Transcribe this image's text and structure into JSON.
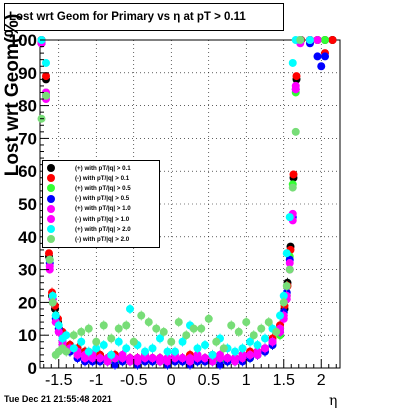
{
  "title": "Lost wrt Geom for Primary vs  η at pT > 0.11",
  "timestamp": "Tue Dec 21 21:55:48 2021",
  "chart_data": {
    "type": "scatter",
    "title": "Lost wrt Geom for Primary vs  η at pT > 0.11",
    "xlabel": "η",
    "ylabel": "Lost wrt Geom(%)",
    "xlim": [
      -1.75,
      2.25
    ],
    "ylim": [
      0,
      100
    ],
    "xticks": [
      -1.5,
      -1,
      -0.5,
      0,
      0.5,
      1,
      1.5,
      2
    ],
    "xtick_labels": [
      "-1.5",
      "-1",
      "-0.5",
      "0",
      "0.5",
      "1",
      "1.5",
      "2"
    ],
    "yticks": [
      0,
      10,
      20,
      30,
      40,
      50,
      60,
      70,
      80,
      90,
      100
    ],
    "ytick_labels": [
      "0",
      "10",
      "20",
      "30",
      "40",
      "50",
      "60",
      "70",
      "80",
      "90",
      "100"
    ],
    "grid": true,
    "legend_position": "left-middle",
    "series": [
      {
        "name": "(+) with pT/|q| > 0.1",
        "color": "#000000",
        "x": [
          -1.73,
          -1.67,
          -1.63,
          -1.59,
          -1.55,
          -1.51,
          -1.45,
          -1.35,
          -1.25,
          -1.15,
          -1.05,
          -0.95,
          -0.85,
          -0.75,
          -0.65,
          -0.55,
          -0.45,
          -0.35,
          -0.25,
          -0.15,
          -0.05,
          0.05,
          0.15,
          0.25,
          0.35,
          0.45,
          0.55,
          0.65,
          0.75,
          0.85,
          0.95,
          1.05,
          1.15,
          1.25,
          1.35,
          1.45,
          1.51,
          1.55,
          1.59,
          1.63,
          1.67,
          1.73,
          1.85,
          1.95,
          2.05,
          2.15
        ],
        "y": [
          100,
          88,
          34,
          22,
          18,
          14,
          10,
          7,
          6,
          5,
          4,
          4,
          3,
          3,
          3,
          3,
          3,
          3,
          3,
          3,
          3,
          3,
          3,
          3,
          3,
          3,
          3,
          3,
          3,
          3,
          4,
          4,
          5,
          6,
          8,
          12,
          18,
          26,
          37,
          58,
          88,
          100,
          100,
          100,
          100,
          100
        ]
      },
      {
        "name": "(-) with pT/|q| > 0.1",
        "color": "#ff0000",
        "x": [
          -1.73,
          -1.67,
          -1.63,
          -1.59,
          -1.55,
          -1.51,
          -1.45,
          -1.35,
          -1.25,
          -1.15,
          -1.05,
          -0.95,
          -0.85,
          -0.75,
          -0.65,
          -0.55,
          -0.45,
          -0.35,
          -0.25,
          -0.15,
          -0.05,
          0.05,
          0.15,
          0.25,
          0.35,
          0.45,
          0.55,
          0.65,
          0.75,
          0.85,
          0.95,
          1.05,
          1.15,
          1.25,
          1.35,
          1.45,
          1.51,
          1.55,
          1.59,
          1.63,
          1.67,
          1.73,
          1.85,
          1.95,
          2.05,
          2.15
        ],
        "y": [
          99,
          89,
          35,
          23,
          19,
          15,
          11,
          7,
          6,
          5,
          4,
          4,
          3,
          4,
          3,
          3,
          3,
          4,
          3,
          3,
          3,
          3,
          3,
          4,
          3,
          3,
          4,
          3,
          3,
          3,
          4,
          5,
          5,
          6,
          9,
          13,
          19,
          25,
          36,
          59,
          89,
          100,
          100,
          100,
          96,
          100
        ]
      },
      {
        "name": "(+) with pT/|q| > 0.5",
        "color": "#33ff33",
        "x": [
          -1.73,
          -1.67,
          -1.62,
          -1.58,
          -1.54,
          -1.5,
          -1.45,
          -1.35,
          -1.25,
          -1.15,
          -1.05,
          -0.95,
          -0.85,
          -0.75,
          -0.65,
          -0.55,
          -0.45,
          -0.35,
          -0.25,
          -0.15,
          -0.05,
          0.05,
          0.15,
          0.25,
          0.35,
          0.45,
          0.55,
          0.65,
          0.75,
          0.85,
          0.95,
          1.05,
          1.15,
          1.25,
          1.35,
          1.45,
          1.5,
          1.54,
          1.58,
          1.62,
          1.66,
          1.72,
          1.85,
          1.95,
          2.05
        ],
        "y": [
          100,
          84,
          33,
          20,
          16,
          12,
          8,
          5,
          4,
          3,
          3,
          3,
          2,
          2,
          2,
          2,
          2,
          2,
          2,
          2,
          2,
          2,
          2,
          2,
          2,
          2,
          2,
          2,
          2,
          2,
          3,
          3,
          4,
          5,
          7,
          10,
          16,
          22,
          34,
          56,
          84,
          100,
          100,
          100,
          100
        ]
      },
      {
        "name": "(-) with pT/|q| > 0.5",
        "color": "#0000ff",
        "x": [
          -1.73,
          -1.67,
          -1.62,
          -1.58,
          -1.54,
          -1.5,
          -1.45,
          -1.35,
          -1.25,
          -1.15,
          -1.05,
          -0.95,
          -0.85,
          -0.75,
          -0.65,
          -0.55,
          -0.45,
          -0.35,
          -0.25,
          -0.15,
          -0.05,
          0.05,
          0.15,
          0.25,
          0.35,
          0.45,
          0.55,
          0.65,
          0.75,
          0.85,
          0.95,
          1.05,
          1.15,
          1.25,
          1.35,
          1.45,
          1.5,
          1.54,
          1.58,
          1.62,
          1.66,
          1.72,
          1.85,
          1.95,
          2.0,
          2.05
        ],
        "y": [
          99,
          83,
          32,
          21,
          15,
          12,
          8,
          5,
          3,
          2,
          2,
          2,
          2,
          1,
          2,
          2,
          1,
          2,
          2,
          2,
          1,
          2,
          2,
          1,
          2,
          2,
          2,
          1,
          2,
          2,
          2,
          3,
          4,
          5,
          7,
          11,
          17,
          23,
          33,
          46,
          85,
          100,
          99,
          95,
          92,
          95
        ]
      },
      {
        "name": "(+) with pT/|q| > 1.0",
        "color": "#ff00ff",
        "x": [
          -1.73,
          -1.67,
          -1.62,
          -1.58,
          -1.54,
          -1.5,
          -1.45,
          -1.35,
          -1.25,
          -1.15,
          -1.05,
          -0.95,
          -0.85,
          -0.75,
          -0.65,
          -0.55,
          -0.45,
          -0.35,
          -0.25,
          -0.15,
          -0.05,
          0.05,
          0.15,
          0.25,
          0.35,
          0.45,
          0.55,
          0.65,
          0.75,
          0.85,
          0.95,
          1.05,
          1.15,
          1.25,
          1.35,
          1.45,
          1.5,
          1.54,
          1.58,
          1.62,
          1.66,
          1.72,
          1.85,
          1.95
        ],
        "y": [
          100,
          82,
          30,
          20,
          14,
          11,
          8,
          6,
          4,
          3,
          3,
          3,
          2,
          3,
          3,
          2,
          2,
          3,
          3,
          2,
          2,
          3,
          3,
          2,
          3,
          3,
          2,
          3,
          3,
          2,
          3,
          4,
          4,
          6,
          8,
          11,
          15,
          21,
          32,
          45,
          86,
          100,
          100,
          100
        ]
      },
      {
        "name": "(-) with pT/|q| > 1.0",
        "color": "#ff00ff",
        "x": [
          -1.73,
          -1.67,
          -1.62,
          -1.58,
          -1.54,
          -1.5,
          -1.45,
          -1.35,
          -1.25,
          -1.15,
          -1.05,
          -0.95,
          -0.85,
          -0.75,
          -0.65,
          -0.55,
          -0.45,
          -0.35,
          -0.25,
          -0.15,
          -0.05,
          0.05,
          0.15,
          0.25,
          0.35,
          0.45,
          0.55,
          0.65,
          0.75,
          0.85,
          0.95,
          1.05,
          1.15,
          1.25,
          1.35,
          1.45,
          1.5,
          1.54,
          1.58,
          1.62,
          1.66,
          1.72,
          1.85
        ],
        "y": [
          99,
          84,
          31,
          21,
          14,
          11,
          7,
          6,
          5,
          4,
          4,
          3,
          3,
          3,
          4,
          3,
          3,
          4,
          3,
          3,
          3,
          4,
          3,
          3,
          4,
          3,
          3,
          4,
          3,
          3,
          4,
          4,
          5,
          6,
          8,
          12,
          16,
          22,
          30,
          47,
          85,
          99,
          100
        ]
      },
      {
        "name": "(+) with pT/|q| > 2.0",
        "color": "#00ffff",
        "x": [
          -1.73,
          -1.67,
          -1.62,
          -1.58,
          -1.54,
          -1.5,
          -1.45,
          -1.4,
          -1.3,
          -1.2,
          -1.1,
          -1.0,
          -0.9,
          -0.8,
          -0.7,
          -0.6,
          -0.55,
          -0.45,
          -0.35,
          -0.25,
          -0.15,
          -0.05,
          0.05,
          0.15,
          0.25,
          0.35,
          0.45,
          0.55,
          0.65,
          0.75,
          0.85,
          0.95,
          1.05,
          1.15,
          1.25,
          1.35,
          1.45,
          1.5,
          1.54,
          1.58,
          1.62,
          1.66,
          1.72,
          1.85
        ],
        "y": [
          100,
          93,
          33,
          22,
          16,
          13,
          9,
          10,
          6,
          8,
          5,
          6,
          7,
          4,
          8,
          6,
          18,
          7,
          5,
          6,
          9,
          5,
          5,
          8,
          13,
          6,
          7,
          4,
          9,
          6,
          5,
          6,
          8,
          7,
          9,
          12,
          16,
          22,
          35,
          46,
          93,
          100,
          100,
          100
        ]
      },
      {
        "name": "(-) with pT/|q| > 2.0",
        "color": "#77dd77",
        "x": [
          -1.73,
          -1.67,
          -1.62,
          -1.58,
          -1.54,
          -1.5,
          -1.45,
          -1.4,
          -1.3,
          -1.2,
          -1.1,
          -1.0,
          -0.9,
          -0.8,
          -0.7,
          -0.6,
          -0.5,
          -0.4,
          -0.3,
          -0.2,
          -0.1,
          0.0,
          0.1,
          0.2,
          0.3,
          0.4,
          0.5,
          0.6,
          0.7,
          0.8,
          0.9,
          1.0,
          1.1,
          1.2,
          1.3,
          1.4,
          1.5,
          1.54,
          1.58,
          1.62,
          1.66,
          1.72
        ],
        "y": [
          76,
          83,
          33,
          20,
          4,
          5,
          6,
          5,
          10,
          11,
          12,
          8,
          13,
          9,
          12,
          13,
          8,
          16,
          14,
          12,
          11,
          8,
          14,
          10,
          12,
          12,
          15,
          8,
          6,
          13,
          11,
          14,
          10,
          12,
          14,
          11,
          20,
          25,
          30,
          55,
          72,
          100
        ]
      }
    ]
  }
}
